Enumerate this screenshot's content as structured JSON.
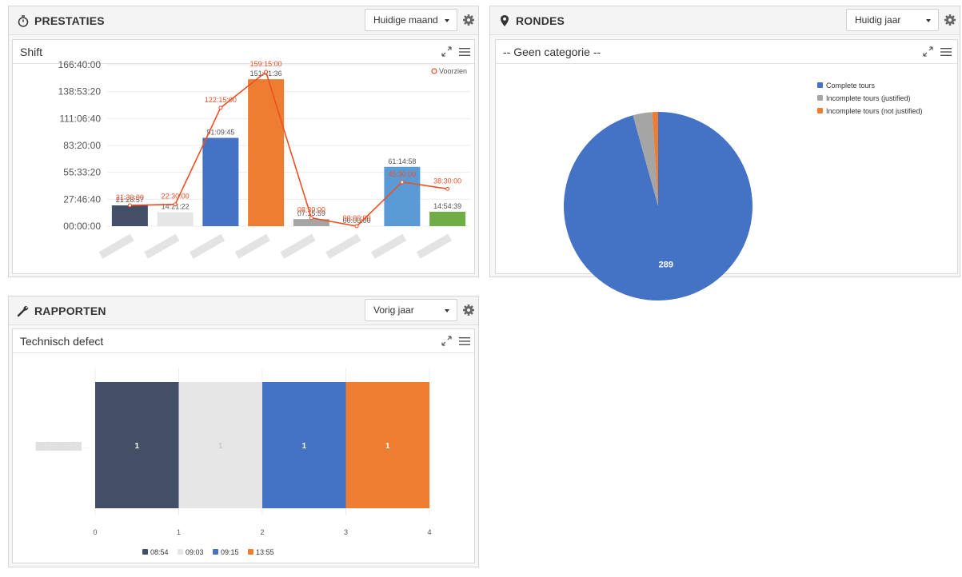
{
  "widgets": {
    "prestaties": {
      "title": "PRESTATIES",
      "icon": "stopwatch-icon",
      "dropdown": "Huidige maand",
      "panel_title": "Shift"
    },
    "rondes": {
      "title": "RONDES",
      "icon": "map-pin-icon",
      "dropdown": "Huidig jaar",
      "panel_title": "-- Geen categorie --"
    },
    "rapporten": {
      "title": "RAPPORTEN",
      "icon": "wrench-icon",
      "dropdown": "Vorig jaar",
      "panel_title": "Technisch defect"
    }
  },
  "chart_data": [
    {
      "type": "bar",
      "yticks": [
        "166:40:00",
        "138:53:20",
        "111:06:40",
        "83:20:00",
        "55:33:20",
        "27:46:40",
        "00:00:00"
      ],
      "ylim": [
        0,
        600000
      ],
      "bars": [
        {
          "label": "21:28:57",
          "seconds": 77337,
          "color": "#434f66"
        },
        {
          "label": "14:21:22",
          "seconds": 51682,
          "color": "#e6e6e6"
        },
        {
          "label": "91:09:45",
          "seconds": 328185,
          "color": "#4472c4"
        },
        {
          "label": "151:41:36",
          "seconds": 546096,
          "color": "#ed7d31"
        },
        {
          "label": "07:15:59",
          "seconds": 26159,
          "color": "#a5a5a5"
        },
        {
          "label": "00:00:00",
          "seconds": 0,
          "color": "#ffc000"
        },
        {
          "label": "61:14:58",
          "seconds": 220498,
          "color": "#5b9bd5"
        },
        {
          "label": "14:54:39",
          "seconds": 53679,
          "color": "#70ad47"
        }
      ],
      "line_series": {
        "name": "Voorzien",
        "color": "#f04e23",
        "labels": [
          "21:30:00",
          "22:30:00",
          "122:15:00",
          "159:15:00",
          "08:30:00",
          "00:00:00",
          "45:30:00",
          "38:30:00"
        ],
        "seconds": [
          77400,
          81000,
          440100,
          573300,
          30600,
          0,
          163800,
          138600
        ]
      }
    },
    {
      "type": "pie",
      "slices": [
        {
          "name": "Complete tours",
          "value": 289,
          "label": "289",
          "color": "#4472c4"
        },
        {
          "name": "Incomplete tours (justified)",
          "value": 10,
          "color": "#a5a5a5"
        },
        {
          "name": "Incomplete tours (not justified)",
          "value": 3,
          "color": "#ed7d31"
        }
      ]
    },
    {
      "type": "bar",
      "orientation": "horizontal-stacked",
      "xticks": [
        "0",
        "1",
        "2",
        "3",
        "4"
      ],
      "xlim": [
        0,
        4
      ],
      "series": [
        {
          "name": "08:54",
          "value": 1,
          "label": "1",
          "color": "#434f66"
        },
        {
          "name": "09:03",
          "value": 1,
          "label": "1",
          "color": "#e6e6e6"
        },
        {
          "name": "09:15",
          "value": 1,
          "label": "1",
          "color": "#4472c4"
        },
        {
          "name": "13:55",
          "value": 1,
          "label": "1",
          "color": "#ed7d31"
        }
      ]
    }
  ]
}
